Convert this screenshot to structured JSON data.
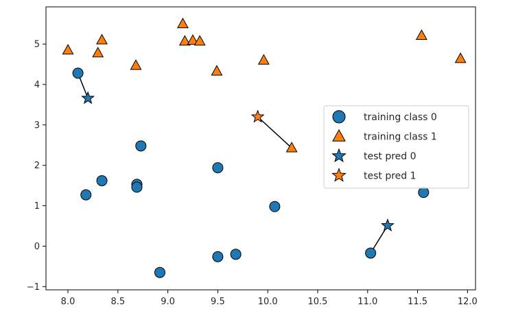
{
  "chart_data": {
    "type": "scatter",
    "xlim": [
      7.78,
      12.08
    ],
    "ylim": [
      -1.08,
      5.92
    ],
    "xticks": [
      8.0,
      8.5,
      9.0,
      9.5,
      10.0,
      10.5,
      11.0,
      11.5,
      12.0
    ],
    "xtick_labels": [
      "8.0",
      "8.5",
      "9.0",
      "9.5",
      "10.0",
      "10.5",
      "11.0",
      "11.5",
      "12.0"
    ],
    "yticks": [
      -1,
      0,
      1,
      2,
      3,
      4,
      5
    ],
    "ytick_labels": [
      "−1",
      "0",
      "1",
      "2",
      "3",
      "4",
      "5"
    ],
    "colors": {
      "class0": "#1f77b4",
      "class1": "#ff7f0e",
      "edge": "#000000",
      "axes": "#000000"
    },
    "series": [
      {
        "name": "training class 0",
        "marker": "circle",
        "color": "#1f77b4",
        "points": [
          [
            8.1,
            4.28
          ],
          [
            8.18,
            1.27
          ],
          [
            8.34,
            1.62
          ],
          [
            8.69,
            1.53
          ],
          [
            8.69,
            1.46
          ],
          [
            8.73,
            2.48
          ],
          [
            8.92,
            -0.65
          ],
          [
            9.5,
            1.94
          ],
          [
            9.5,
            -0.26
          ],
          [
            9.68,
            -0.2
          ],
          [
            10.07,
            0.98
          ],
          [
            11.03,
            -0.17
          ],
          [
            11.56,
            1.33
          ]
        ]
      },
      {
        "name": "training class 1",
        "marker": "triangle",
        "color": "#ff7f0e",
        "points": [
          [
            8.0,
            4.85
          ],
          [
            8.3,
            4.78
          ],
          [
            8.34,
            5.1
          ],
          [
            8.68,
            4.47
          ],
          [
            9.15,
            5.5
          ],
          [
            9.17,
            5.07
          ],
          [
            9.25,
            5.09
          ],
          [
            9.32,
            5.07
          ],
          [
            9.49,
            4.33
          ],
          [
            9.96,
            4.6
          ],
          [
            10.24,
            2.43
          ],
          [
            11.54,
            5.21
          ],
          [
            11.93,
            4.64
          ]
        ]
      },
      {
        "name": "test pred 0",
        "marker": "star",
        "color": "#1f77b4",
        "points": [
          [
            8.2,
            3.66
          ],
          [
            11.2,
            0.51
          ]
        ]
      },
      {
        "name": "test pred 1",
        "marker": "star",
        "color": "#ff7f0e",
        "points": [
          [
            9.9,
            3.2
          ]
        ]
      }
    ],
    "neighbor_links": [
      {
        "from": [
          8.2,
          3.66
        ],
        "to": [
          8.1,
          4.28
        ]
      },
      {
        "from": [
          11.2,
          0.51
        ],
        "to": [
          11.03,
          -0.17
        ]
      },
      {
        "from": [
          9.9,
          3.2
        ],
        "to": [
          10.24,
          2.43
        ]
      }
    ],
    "legend": {
      "position": "center-right",
      "entries": [
        "training class 0",
        "training class 1",
        "test pred 0",
        "test pred 1"
      ]
    },
    "title": "",
    "xlabel": "",
    "ylabel": "",
    "grid": false
  }
}
